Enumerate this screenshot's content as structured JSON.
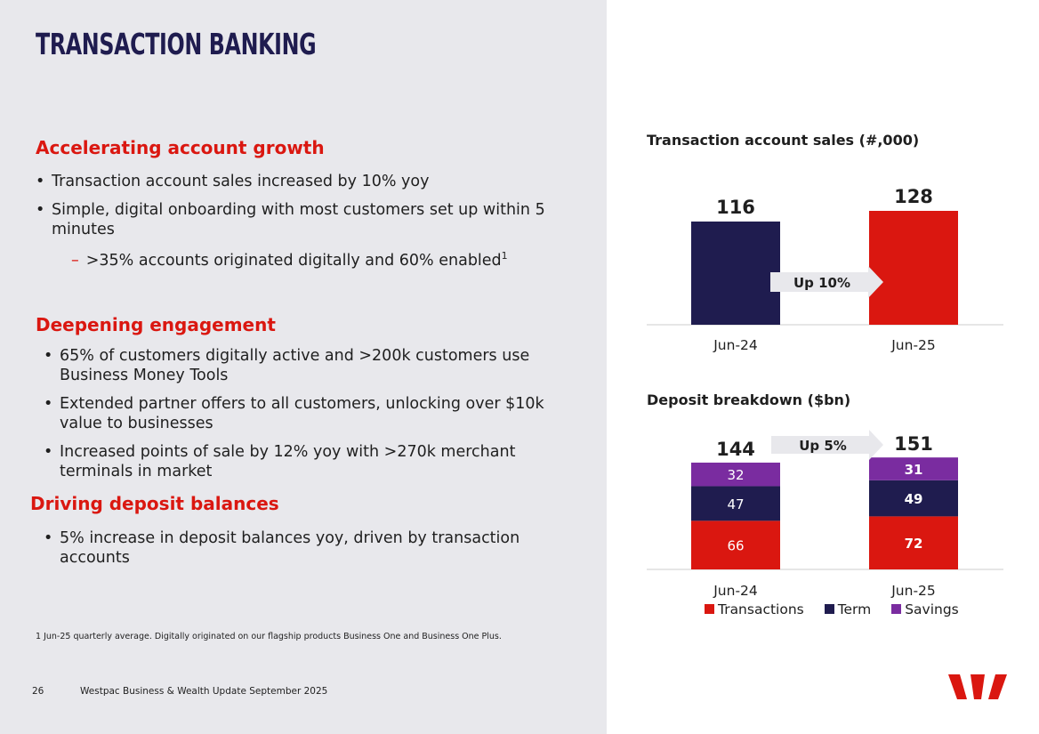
{
  "title": "TRANSACTION BANKING",
  "sections": {
    "growth": {
      "heading": "Accelerating account growth",
      "bullets": [
        "Transaction account sales increased by 10% yoy",
        "Simple, digital onboarding with most customers set up within 5 minutes"
      ],
      "sub_dash": "–",
      "sub_bullet": ">35% accounts originated digitally and 60% enabled",
      "sub_superscript": "1"
    },
    "engagement": {
      "heading": "Deepening engagement",
      "bullets": [
        "65% of customers digitally active and >200k customers use Business Money Tools",
        "Extended partner offers to all customers, unlocking over $10k value to businesses",
        "Increased points of sale by 12% yoy with >270k merchant terminals in market"
      ]
    },
    "deposits": {
      "heading": "Driving deposit balances",
      "bullets": [
        "5% increase in deposit balances yoy, driven by transaction accounts"
      ]
    }
  },
  "footnote": "1 Jun-25 quarterly average. Digitally originated on our flagship products Business One and Business One Plus.",
  "footer": {
    "page_number": "26",
    "text": "Westpac Business & Wealth Update September 2025"
  },
  "colors": {
    "navy": "#1f1c4f",
    "red": "#da1710",
    "purple": "#7a2ca0",
    "arrow": "#e8e8ec"
  },
  "logo": "westpac-w-logo",
  "chart_data": [
    {
      "type": "bar",
      "title": "Transaction account sales (#,000)",
      "categories": [
        "Jun-24",
        "Jun-25"
      ],
      "values": [
        116,
        128
      ],
      "data_labels": [
        "116",
        "128"
      ],
      "bar_colors": [
        "#1f1c4f",
        "#da1710"
      ],
      "annotation": "Up 10%",
      "ylim": [
        0,
        140
      ],
      "grid": false,
      "legend": "none"
    },
    {
      "type": "bar",
      "stacked": true,
      "title": "Deposit breakdown ($bn)",
      "categories": [
        "Jun-24",
        "Jun-25"
      ],
      "series": [
        {
          "name": "Transactions",
          "values": [
            66,
            72
          ],
          "color": "#da1710"
        },
        {
          "name": "Term",
          "values": [
            47,
            49
          ],
          "color": "#1f1c4f"
        },
        {
          "name": "Savings",
          "values": [
            32,
            31
          ],
          "color": "#7a2ca0"
        }
      ],
      "totals": [
        "144",
        "151"
      ],
      "annotation": "Up 5%",
      "ylim": [
        0,
        165
      ],
      "grid": false,
      "legend": "bottom"
    }
  ]
}
